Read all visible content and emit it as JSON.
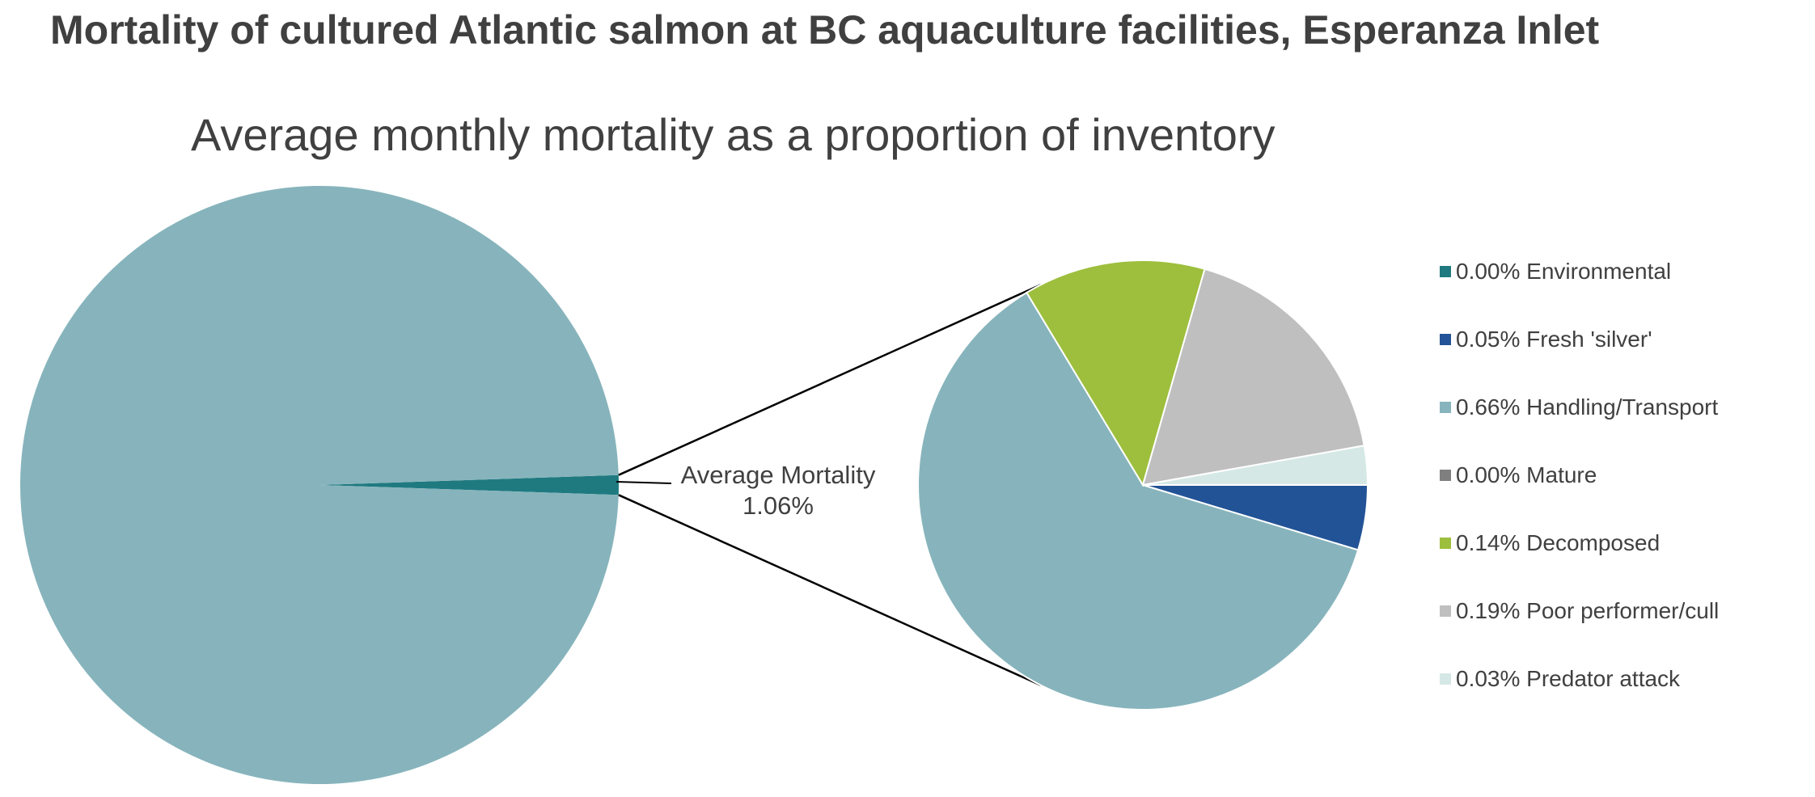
{
  "chart_data": {
    "type": "pie",
    "variant": "pie-of-pie",
    "title": "Mortality of cultured Atlantic salmon at BC aquaculture facilities, Esperanza Inlet",
    "subtitle": "Average monthly mortality as a proportion of inventory",
    "primary_pie": {
      "slices": [
        {
          "name": "Average Mortality",
          "value": 1.06,
          "color": "#1F7A80"
        },
        {
          "name": "",
          "value": 98.94,
          "color": "#87B4BC"
        }
      ]
    },
    "callout": {
      "label": "Average Mortality",
      "value": "1.06%"
    },
    "secondary_pie": {
      "slices": [
        {
          "name": "Environmental",
          "value": 0.0,
          "label": "0.00% Environmental",
          "color": "#1F7A80"
        },
        {
          "name": "Fresh 'silver'",
          "value": 0.05,
          "label": "0.05% Fresh 'silver'",
          "color": "#225396"
        },
        {
          "name": "Handling/Transport",
          "value": 0.66,
          "label": "0.66% Handling/Transport",
          "color": "#87B4BC"
        },
        {
          "name": "Mature",
          "value": 0.0,
          "label": "0.00% Mature",
          "color": "#7F7F7F"
        },
        {
          "name": "Decomposed",
          "value": 0.14,
          "label": "0.14% Decomposed",
          "color": "#9DBF3D"
        },
        {
          "name": "Poor performer/cull",
          "value": 0.19,
          "label": "0.19% Poor performer/cull",
          "color": "#BFBFBF"
        },
        {
          "name": "Predator attack",
          "value": 0.03,
          "label": "0.03% Predator attack",
          "color": "#D5E8E5"
        }
      ]
    },
    "legend_position": "right"
  }
}
